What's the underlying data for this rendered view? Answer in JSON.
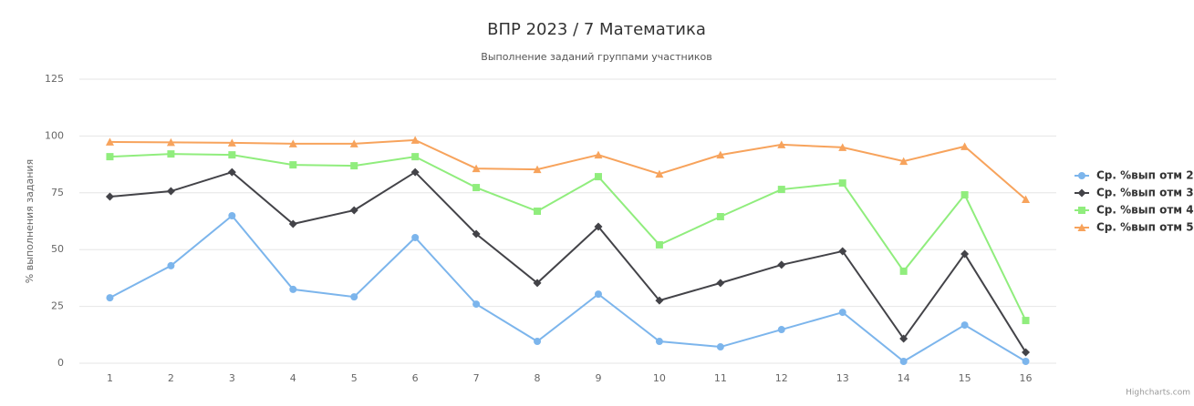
{
  "chart_data": {
    "type": "line",
    "title": "ВПР 2023  /  7 Математика",
    "subtitle": "Выполнение заданий группами участников",
    "y_axis_label": "% выполнения задания",
    "credits": "Highcharts.com",
    "categories": [
      "1",
      "2",
      "3",
      "4",
      "5",
      "6",
      "7",
      "8",
      "9",
      "10",
      "11",
      "12",
      "13",
      "14",
      "15",
      "16"
    ],
    "series": [
      {
        "name": "Ср. %вып отм 2",
        "color": "#7cb5ec",
        "marker": "circle",
        "values": [
          28.8,
          42.9,
          64.9,
          32.5,
          29.2,
          55.3,
          26,
          9.6,
          30.4,
          9.6,
          7.2,
          14.8,
          22.4,
          0.8,
          16.8,
          0.8
        ]
      },
      {
        "name": "Ср. %вып отм 3",
        "color": "#434348",
        "marker": "diamond",
        "values": [
          73.3,
          75.7,
          84.1,
          61.3,
          67.3,
          84.1,
          56.9,
          35.3,
          60.1,
          27.6,
          35.3,
          43.3,
          49.3,
          10.8,
          48.1,
          4.8
        ]
      },
      {
        "name": "Ср. %вып отм 4",
        "color": "#90ed7d",
        "marker": "square",
        "values": [
          90.9,
          92.1,
          91.7,
          87.3,
          86.9,
          90.9,
          77.3,
          66.9,
          82.1,
          52.1,
          64.5,
          76.5,
          79.3,
          40.5,
          74.1,
          18.8
        ]
      },
      {
        "name": "Ср. %вып отм 5",
        "color": "#f7a35c",
        "marker": "triangle",
        "values": [
          97.4,
          97.2,
          97,
          96.6,
          96.6,
          98.2,
          85.7,
          85.3,
          91.7,
          83.3,
          91.7,
          96.2,
          95,
          88.9,
          95.4,
          72.1
        ]
      }
    ],
    "ylim": [
      0,
      125
    ],
    "yticks": [
      0,
      25,
      50,
      75,
      100,
      125
    ],
    "grid": true,
    "legend": "right"
  }
}
